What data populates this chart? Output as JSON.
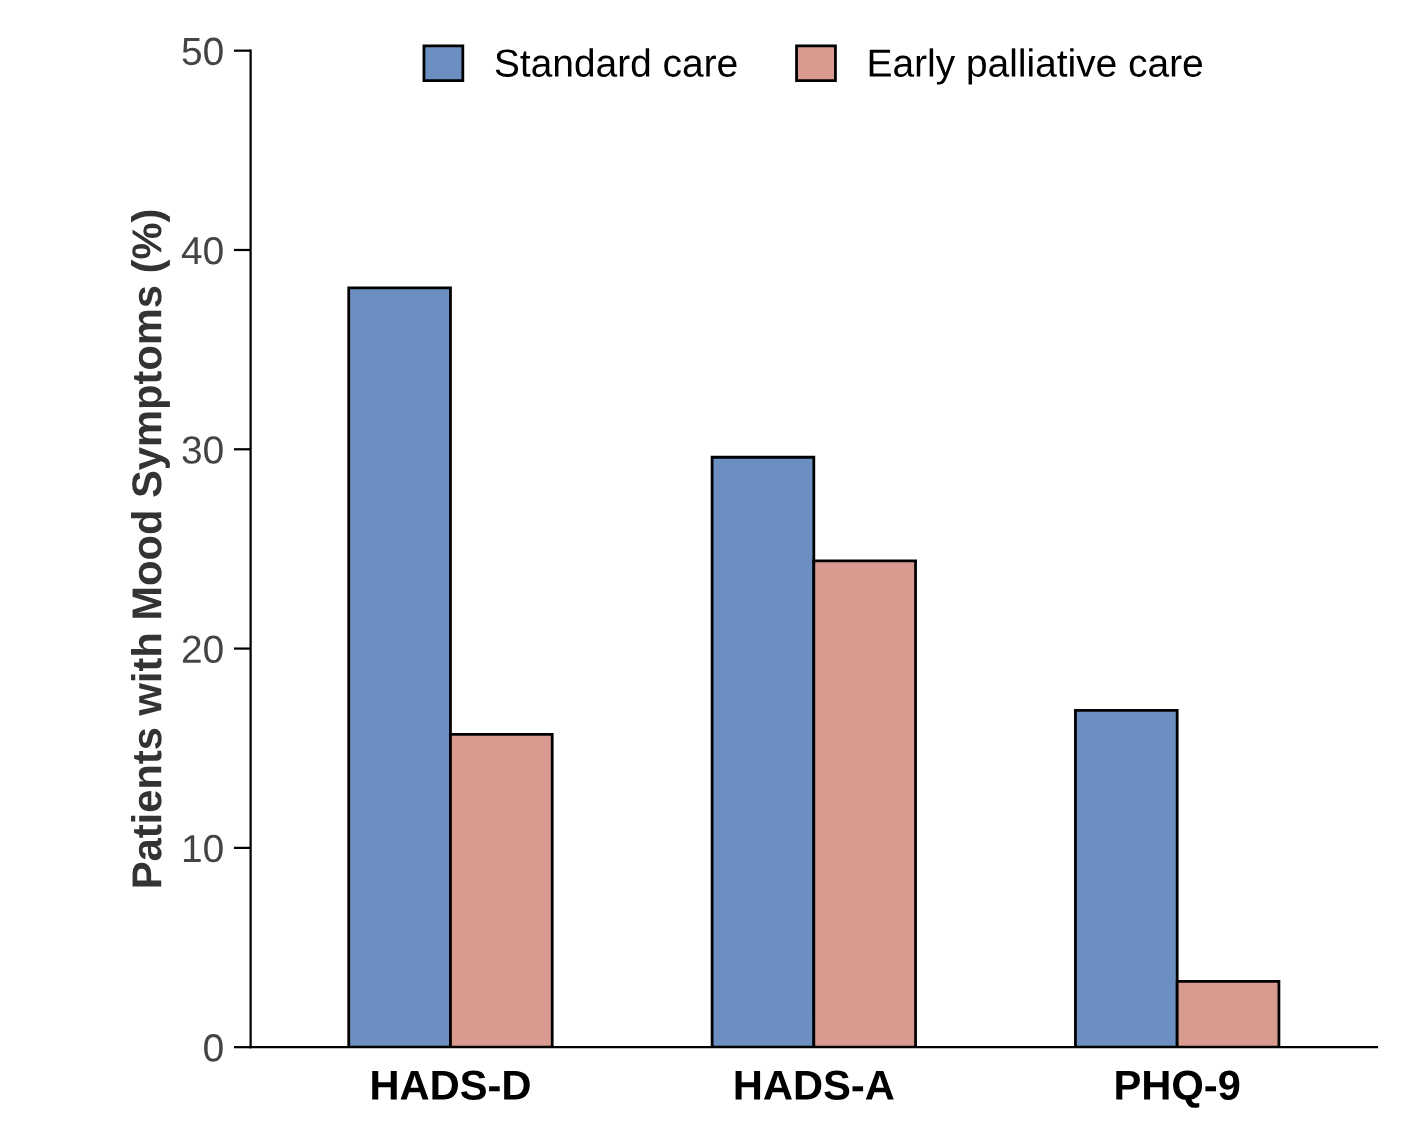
{
  "chart_data": {
    "type": "bar",
    "ylabel": "Patients with Mood Symptoms (%)",
    "categories": [
      "HADS-D",
      "HADS-A",
      "PHQ-9"
    ],
    "series": [
      {
        "name": "Standard care",
        "color": "#6b8fc0",
        "values": [
          38.1,
          29.6,
          16.9
        ]
      },
      {
        "name": "Early palliative care",
        "color": "#d99b90",
        "values": [
          15.7,
          24.4,
          3.3
        ]
      }
    ],
    "ylim": [
      0,
      50
    ],
    "yticks": [
      0,
      10,
      20,
      30,
      40,
      50
    ],
    "grid": false,
    "legend": "top"
  }
}
